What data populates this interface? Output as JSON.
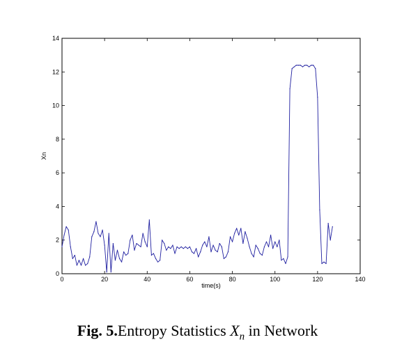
{
  "caption": {
    "label": "Fig. 5.",
    "text_before": "Entropy Statistics ",
    "variable": "X",
    "subscript": "n",
    "text_after": " in Network"
  },
  "chart_data": {
    "type": "line",
    "title": "",
    "xlabel": "time(s)",
    "ylabel": "Xn",
    "xlim": [
      0,
      140
    ],
    "ylim": [
      0,
      14
    ],
    "xticks": [
      0,
      20,
      40,
      60,
      80,
      100,
      120,
      140
    ],
    "yticks": [
      0,
      2,
      4,
      6,
      8,
      10,
      12,
      14
    ],
    "grid": false,
    "line_color": "#1f1fa0",
    "series": [
      {
        "x": [
          0,
          1,
          2,
          3,
          4,
          5,
          6,
          7,
          8,
          9,
          10,
          11,
          12,
          13,
          14,
          15,
          16,
          17,
          18,
          19,
          20,
          21,
          22,
          23,
          24,
          25,
          26,
          27,
          28,
          29,
          30,
          31,
          32,
          33,
          34,
          35,
          36,
          37,
          38,
          39,
          40,
          41,
          42,
          43,
          44,
          45,
          46,
          47,
          48,
          49,
          50,
          51,
          52,
          53,
          54,
          55,
          56,
          57,
          58,
          59,
          60,
          61,
          62,
          63,
          64,
          65,
          66,
          67,
          68,
          69,
          70,
          71,
          72,
          73,
          74,
          75,
          76,
          77,
          78,
          79,
          80,
          81,
          82,
          83,
          84,
          85,
          86,
          87,
          88,
          89,
          90,
          91,
          92,
          93,
          94,
          95,
          96,
          97,
          98,
          99,
          100,
          101,
          102,
          103,
          104,
          105,
          106,
          107,
          108,
          109,
          110,
          111,
          112,
          113,
          114,
          115,
          116,
          117,
          118,
          119,
          120,
          121,
          122,
          123,
          124,
          125,
          126,
          127
        ],
        "y": [
          1.6,
          2.3,
          2.8,
          2.6,
          1.6,
          0.9,
          1.1,
          0.5,
          0.8,
          0.5,
          0.9,
          0.5,
          0.6,
          1.0,
          2.2,
          2.5,
          3.1,
          2.4,
          2.2,
          2.6,
          1.7,
          0.1,
          2.4,
          0.1,
          1.8,
          0.8,
          1.4,
          0.9,
          0.7,
          1.3,
          1.1,
          1.2,
          2.0,
          2.3,
          1.4,
          1.8,
          1.7,
          1.6,
          2.4,
          1.9,
          1.6,
          3.2,
          1.1,
          1.2,
          0.9,
          0.7,
          0.8,
          2.0,
          1.8,
          1.4,
          1.6,
          1.5,
          1.7,
          1.2,
          1.6,
          1.5,
          1.6,
          1.5,
          1.6,
          1.5,
          1.6,
          1.3,
          1.2,
          1.5,
          1.0,
          1.3,
          1.7,
          1.9,
          1.6,
          2.2,
          1.3,
          1.7,
          1.4,
          1.3,
          1.8,
          1.6,
          0.9,
          1.0,
          1.3,
          2.2,
          1.9,
          2.4,
          2.7,
          2.3,
          2.7,
          1.8,
          2.5,
          2.1,
          1.6,
          1.2,
          1.0,
          1.7,
          1.5,
          1.2,
          1.1,
          1.6,
          1.9,
          1.6,
          2.3,
          1.5,
          1.9,
          1.6,
          2.0,
          0.8,
          0.9,
          0.6,
          1.0,
          11.0,
          12.2,
          12.3,
          12.4,
          12.4,
          12.4,
          12.3,
          12.4,
          12.4,
          12.3,
          12.4,
          12.4,
          12.2,
          10.5,
          3.8,
          0.6,
          0.7,
          0.6,
          3.0,
          2.0,
          2.8
        ]
      }
    ]
  }
}
